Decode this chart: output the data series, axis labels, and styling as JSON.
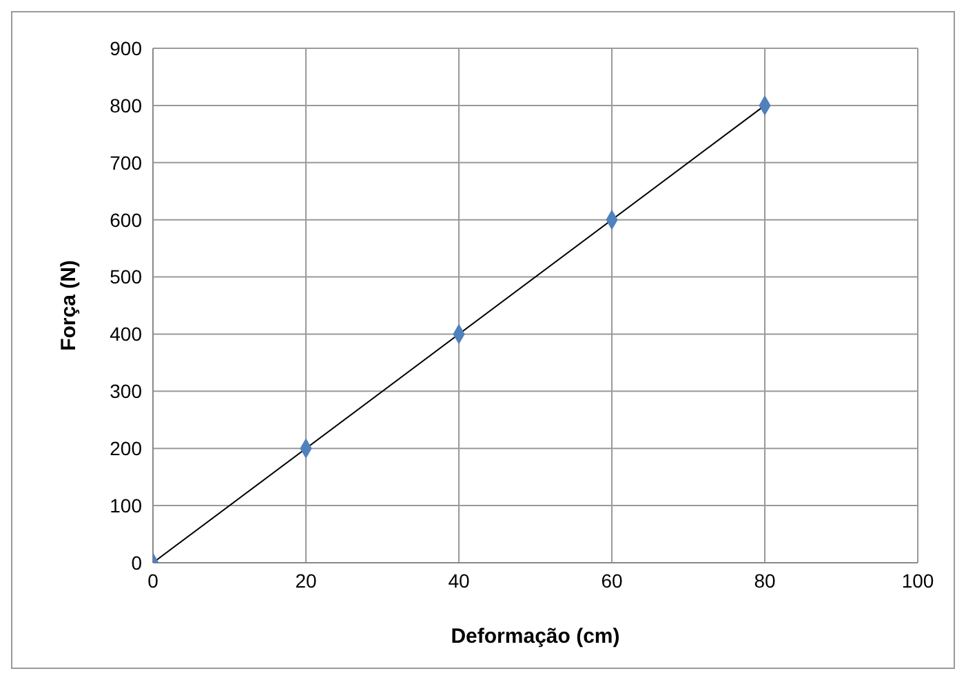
{
  "chart_data": {
    "type": "scatter",
    "xlabel": "Deformação (cm)",
    "ylabel": "Força (N)",
    "x": [
      0,
      20,
      40,
      60,
      80
    ],
    "series": [
      {
        "color": "#4f81bd",
        "values": [
          0,
          200,
          400,
          600,
          800
        ],
        "marker": "diamond"
      },
      {
        "type": "line",
        "color": "#000000",
        "x": [
          0,
          80
        ],
        "values": [
          0,
          800
        ],
        "marker": "none"
      }
    ],
    "xlim": [
      0,
      100
    ],
    "xticks": [
      0,
      20,
      40,
      60,
      80,
      100
    ],
    "ylim": [
      0,
      900
    ],
    "yticks": [
      0,
      100,
      200,
      300,
      400,
      500,
      600,
      700,
      800,
      900
    ],
    "grid": true,
    "legend": false
  }
}
